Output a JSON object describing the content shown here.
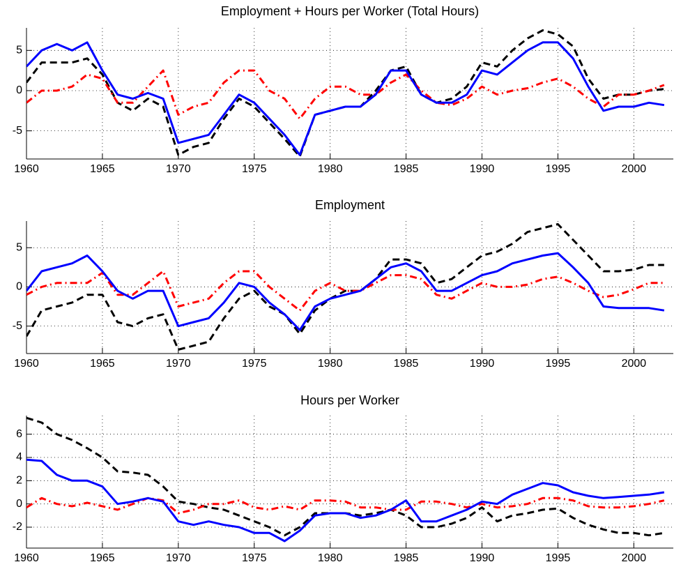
{
  "chart_data": [
    {
      "type": "line",
      "title": "Employment + Hours per Worker (Total Hours)",
      "x": [
        1960,
        1961,
        1962,
        1963,
        1964,
        1965,
        1966,
        1967,
        1968,
        1969,
        1970,
        1971,
        1972,
        1973,
        1974,
        1975,
        1976,
        1977,
        1978,
        1979,
        1980,
        1981,
        1982,
        1983,
        1984,
        1985,
        1986,
        1987,
        1988,
        1989,
        1990,
        1991,
        1992,
        1993,
        1994,
        1995,
        1996,
        1997,
        1998,
        1999,
        2000,
        2001,
        2002
      ],
      "series": [
        {
          "color": "#0000ff",
          "style": "solid",
          "values": [
            3,
            5,
            5.8,
            5,
            6,
            2.5,
            -0.5,
            -1,
            -0.3,
            -1,
            -6.5,
            -6,
            -5.5,
            -3,
            -0.5,
            -1.5,
            -3.5,
            -5.5,
            -8,
            -3,
            -2.5,
            -2,
            -2,
            -0.5,
            2.5,
            2.5,
            -0.5,
            -1.5,
            -1.5,
            -0.5,
            2.5,
            2,
            3.5,
            5,
            6,
            6,
            4,
            0.5,
            -2.5,
            -2,
            -2,
            -1.5,
            -1.8
          ]
        },
        {
          "color": "#000000",
          "style": "dashed",
          "values": [
            1,
            3.5,
            3.5,
            3.5,
            4,
            2,
            -1.5,
            -2.5,
            -1,
            -2,
            -8,
            -7,
            -6.5,
            -3.5,
            -1,
            -2,
            -4,
            -6,
            -8.2,
            -3,
            -2.5,
            -2,
            -2,
            0,
            2.5,
            3,
            -0.5,
            -1.5,
            -1,
            0.5,
            3.5,
            3,
            5,
            6.5,
            7.5,
            7,
            5.5,
            1.5,
            -1,
            -0.5,
            -0.5,
            0,
            0.2
          ]
        },
        {
          "color": "#ff0000",
          "style": "dashdot",
          "values": [
            -1.5,
            0,
            0,
            0.5,
            2,
            1.5,
            -1.5,
            -1.5,
            0.5,
            2.5,
            -3,
            -2,
            -1.5,
            1,
            2.5,
            2.5,
            0,
            -1,
            -3.5,
            -1,
            0.5,
            0.5,
            -0.5,
            -0.5,
            1,
            2,
            0,
            -1.5,
            -1.8,
            -1,
            0.5,
            -0.5,
            0,
            0.3,
            1,
            1.5,
            0.5,
            -1,
            -2,
            -0.5,
            -0.5,
            0,
            0.7
          ]
        }
      ],
      "xlim": [
        1960,
        2002.6
      ],
      "ylim": [
        -8.5,
        7.8
      ],
      "xticks": [
        1960,
        1965,
        1970,
        1975,
        1980,
        1985,
        1990,
        1995,
        2000
      ],
      "yticks": [
        -5,
        0,
        5
      ],
      "grid": true
    },
    {
      "type": "line",
      "title": "Employment",
      "x": [
        1960,
        1961,
        1962,
        1963,
        1964,
        1965,
        1966,
        1967,
        1968,
        1969,
        1970,
        1971,
        1972,
        1973,
        1974,
        1975,
        1976,
        1977,
        1978,
        1979,
        1980,
        1981,
        1982,
        1983,
        1984,
        1985,
        1986,
        1987,
        1988,
        1989,
        1990,
        1991,
        1992,
        1993,
        1994,
        1995,
        1996,
        1997,
        1998,
        1999,
        2000,
        2001,
        2002
      ],
      "series": [
        {
          "color": "#0000ff",
          "style": "solid",
          "values": [
            -0.5,
            2,
            2.5,
            3,
            4,
            2,
            -0.5,
            -1.5,
            -0.5,
            -0.5,
            -5,
            -4.5,
            -4,
            -2,
            0.5,
            0,
            -2,
            -3.5,
            -5.5,
            -2.5,
            -1.5,
            -1,
            -0.5,
            1,
            2.5,
            3,
            2,
            -0.5,
            -0.5,
            0.5,
            1.5,
            2,
            3,
            3.5,
            4,
            4.3,
            2.5,
            0.5,
            -2.5,
            -2.7,
            -2.7,
            -2.7,
            -3
          ]
        },
        {
          "color": "#000000",
          "style": "dashed",
          "values": [
            -6.3,
            -3,
            -2.5,
            -2,
            -1,
            -1,
            -4.5,
            -5,
            -4,
            -3.5,
            -8,
            -7.5,
            -7,
            -4,
            -1.5,
            -0.5,
            -2.5,
            -3.5,
            -6,
            -3,
            -1.5,
            -0.5,
            -0.5,
            1,
            3.5,
            3.5,
            3,
            0.5,
            1,
            2.5,
            4,
            4.5,
            5.5,
            7,
            7.5,
            8,
            6,
            4,
            2,
            2,
            2.2,
            2.8,
            2.8
          ]
        },
        {
          "color": "#ff0000",
          "style": "dashdot",
          "values": [
            -1,
            0,
            0.5,
            0.5,
            0.5,
            1.8,
            -1,
            -1,
            0.5,
            2,
            -2.5,
            -2,
            -1.5,
            0.5,
            2,
            2,
            0,
            -1.5,
            -3,
            -0.5,
            0.5,
            -0.5,
            -0.5,
            0.5,
            1.5,
            1.5,
            1,
            -1,
            -1.5,
            -0.5,
            0.5,
            0,
            0,
            0.3,
            1,
            1.3,
            0.5,
            -0.5,
            -1.3,
            -1,
            -0.3,
            0.5,
            0.5
          ]
        }
      ],
      "xlim": [
        1960,
        2002.6
      ],
      "ylim": [
        -8.5,
        8.4
      ],
      "xticks": [
        1960,
        1965,
        1970,
        1975,
        1980,
        1985,
        1990,
        1995,
        2000
      ],
      "yticks": [
        -5,
        0,
        5
      ],
      "grid": true
    },
    {
      "type": "line",
      "title": "Hours per Worker",
      "x": [
        1960,
        1961,
        1962,
        1963,
        1964,
        1965,
        1966,
        1967,
        1968,
        1969,
        1970,
        1971,
        1972,
        1973,
        1974,
        1975,
        1976,
        1977,
        1978,
        1979,
        1980,
        1981,
        1982,
        1983,
        1984,
        1985,
        1986,
        1987,
        1988,
        1989,
        1990,
        1991,
        1992,
        1993,
        1994,
        1995,
        1996,
        1997,
        1998,
        1999,
        2000,
        2001,
        2002
      ],
      "series": [
        {
          "color": "#0000ff",
          "style": "solid",
          "values": [
            3.8,
            3.7,
            2.5,
            2,
            2,
            1.5,
            0,
            0.2,
            0.5,
            0.2,
            -1.5,
            -1.8,
            -1.5,
            -1.8,
            -2,
            -2.5,
            -2.5,
            -3.2,
            -2.3,
            -1,
            -0.8,
            -0.8,
            -1.2,
            -1,
            -0.5,
            0.3,
            -1.5,
            -1.5,
            -1,
            -0.5,
            0.2,
            0,
            0.8,
            1.3,
            1.8,
            1.6,
            1,
            0.7,
            0.5,
            0.6,
            0.7,
            0.8,
            1
          ]
        },
        {
          "color": "#000000",
          "style": "dashed",
          "values": [
            7.4,
            7,
            6,
            5.5,
            4.8,
            4,
            2.8,
            2.7,
            2.5,
            1.5,
            0.2,
            0,
            -0.3,
            -0.5,
            -1,
            -1.5,
            -2,
            -2.7,
            -2,
            -0.8,
            -0.8,
            -0.8,
            -1,
            -0.8,
            -0.5,
            -1,
            -2,
            -2,
            -1.7,
            -1.2,
            -0.3,
            -1.5,
            -1,
            -0.8,
            -0.5,
            -0.4,
            -1.2,
            -1.8,
            -2.2,
            -2.5,
            -2.5,
            -2.7,
            -2.5
          ]
        },
        {
          "color": "#ff0000",
          "style": "dashdot",
          "values": [
            -0.3,
            0.5,
            0,
            -0.2,
            0.1,
            -0.2,
            -0.5,
            0,
            0.5,
            0.3,
            -0.8,
            -0.5,
            0,
            0,
            0.3,
            -0.3,
            -0.5,
            -0.2,
            -0.5,
            0.3,
            0.3,
            0.2,
            -0.3,
            -0.3,
            -0.5,
            -0.5,
            0.2,
            0.2,
            0,
            -0.3,
            0,
            -0.3,
            -0.2,
            0,
            0.5,
            0.5,
            0.3,
            -0.2,
            -0.3,
            -0.3,
            -0.2,
            0,
            0.3
          ]
        }
      ],
      "xlim": [
        1960,
        2002.6
      ],
      "ylim": [
        -3.8,
        7.6
      ],
      "xticks": [
        1960,
        1965,
        1970,
        1975,
        1980,
        1985,
        1990,
        1995,
        2000
      ],
      "yticks": [
        -2,
        0,
        2,
        4,
        6
      ],
      "grid": true
    }
  ]
}
